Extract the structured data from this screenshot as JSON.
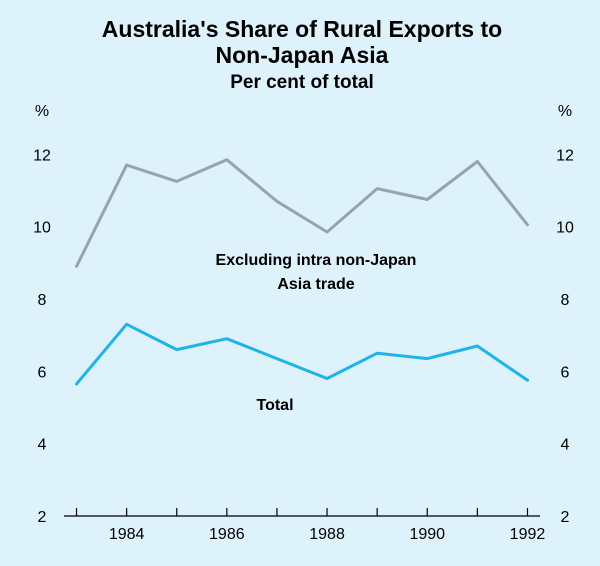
{
  "chart_data": {
    "type": "line",
    "title": [
      "Australia's Share of Rural Exports to",
      "Non-Japan Asia"
    ],
    "subtitle": "Per cent of total",
    "unit_left": "%",
    "unit_right": "%",
    "x": [
      1983,
      1984,
      1985,
      1986,
      1987,
      1988,
      1989,
      1990,
      1991,
      1992
    ],
    "x_ticks": [
      1984,
      1986,
      1988,
      1990,
      1992
    ],
    "xlim": [
      1982.75,
      1992.25
    ],
    "ylim": [
      2,
      13.5
    ],
    "y_ticks": [
      2,
      4,
      6,
      8,
      10,
      12
    ],
    "grid": false,
    "series": [
      {
        "name": [
          "Excluding intra non-Japan",
          "Asia trade"
        ],
        "color": "#98a4ad",
        "values": [
          8.9,
          11.7,
          11.25,
          11.85,
          10.7,
          9.85,
          11.05,
          10.75,
          11.8,
          10.05
        ]
      },
      {
        "name": [
          "Total"
        ],
        "color": "#1fb3e9",
        "values": [
          5.65,
          7.3,
          6.6,
          6.9,
          6.35,
          5.8,
          6.5,
          6.35,
          6.7,
          5.75
        ]
      }
    ]
  }
}
